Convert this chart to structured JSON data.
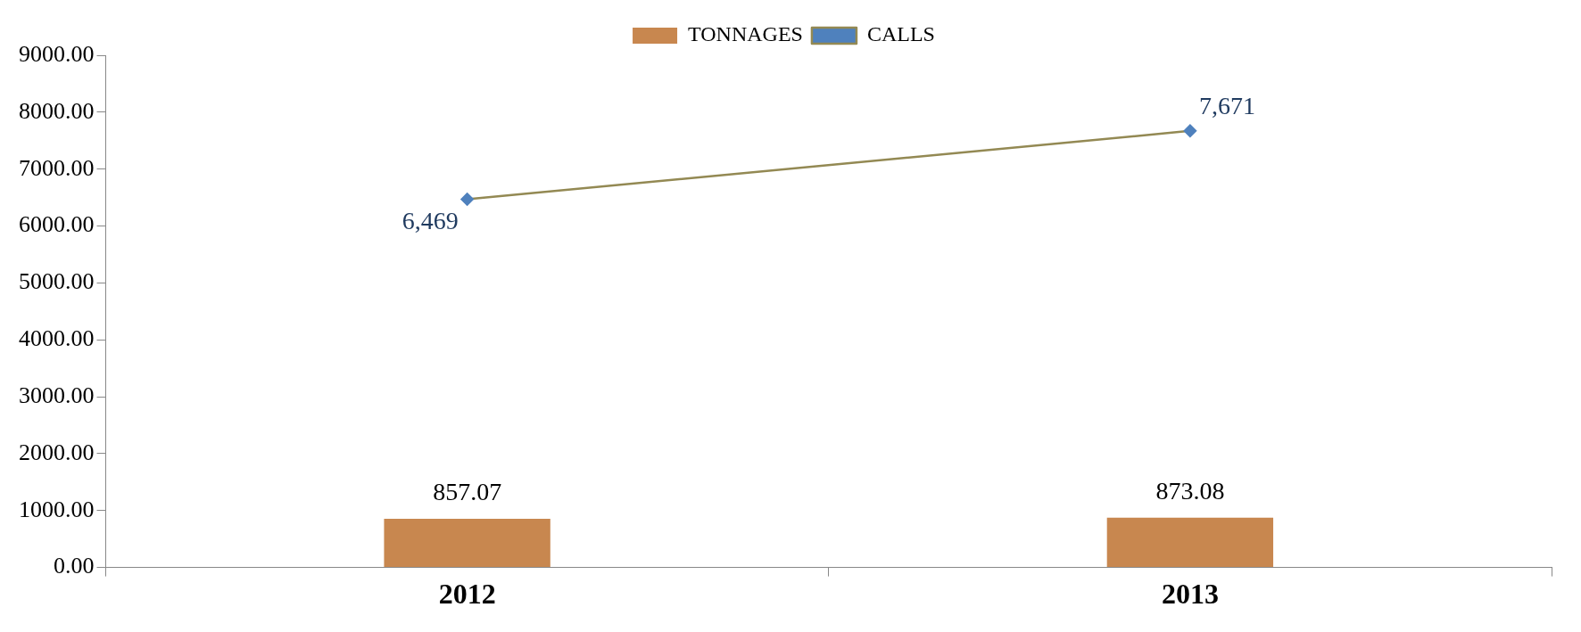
{
  "chart_data": {
    "type": "bar",
    "categories": [
      "2012",
      "2013"
    ],
    "series": [
      {
        "name": "TONNAGES",
        "color": "#c8874f",
        "values": [
          857.07,
          873.08
        ],
        "value_labels": [
          "857.07",
          "873.08"
        ]
      },
      {
        "name": "CALLS",
        "type": "line",
        "color": "#938953",
        "values": [
          6469,
          7671
        ],
        "value_labels": [
          "6,469",
          "7,671"
        ]
      }
    ],
    "ylim": [
      0,
      9000
    ],
    "yticks": [
      {
        "value": 0,
        "label": "0.00"
      },
      {
        "value": 1000,
        "label": "1000.00"
      },
      {
        "value": 2000,
        "label": "2000.00"
      },
      {
        "value": 3000,
        "label": "3000.00"
      },
      {
        "value": 4000,
        "label": "4000.00"
      },
      {
        "value": 5000,
        "label": "5000.00"
      },
      {
        "value": 6000,
        "label": "6000.00"
      },
      {
        "value": 7000,
        "label": "7000.00"
      },
      {
        "value": 8000,
        "label": "8000.00"
      },
      {
        "value": 9000,
        "label": "9000.00"
      }
    ],
    "legend": "top",
    "marker": "diamond",
    "line_style": "solid"
  }
}
